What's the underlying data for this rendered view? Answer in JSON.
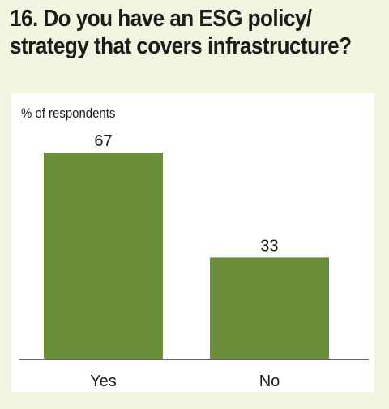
{
  "title_lines": [
    "16. Do you have an ESG policy/",
    "strategy that covers infrastructure?"
  ],
  "colors": {
    "background": "#f4f5e0",
    "panel": "#ffffff",
    "bar": "#6b8e3a",
    "text": "#1c1c1c",
    "axis": "#333333"
  },
  "chart_data": {
    "type": "bar",
    "title": "16. Do you have an ESG policy/ strategy that covers infrastructure?",
    "ylabel": "% of respondents",
    "xlabel": "",
    "categories": [
      "Yes",
      "No"
    ],
    "values": [
      67,
      33
    ],
    "data_labels": [
      "67",
      "33"
    ],
    "ylim": [
      0,
      67
    ],
    "grid": false,
    "legend": "none"
  }
}
